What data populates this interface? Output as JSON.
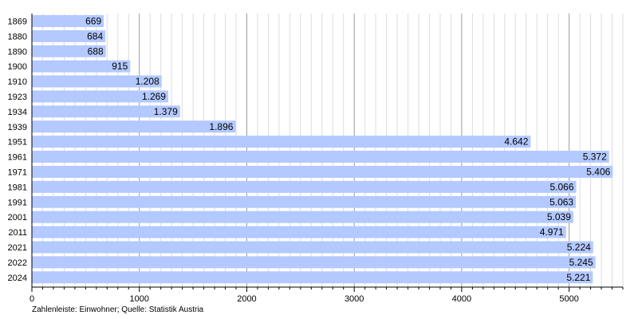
{
  "chart_data": {
    "type": "bar",
    "orientation": "horizontal",
    "categories": [
      "1869",
      "1880",
      "1890",
      "1900",
      "1910",
      "1923",
      "1934",
      "1939",
      "1951",
      "1961",
      "1971",
      "1981",
      "1991",
      "2001",
      "2011",
      "2021",
      "2022",
      "2024"
    ],
    "values": [
      669,
      684,
      688,
      915,
      1208,
      1269,
      1379,
      1896,
      4642,
      5372,
      5406,
      5066,
      5063,
      5039,
      4971,
      5224,
      5245,
      5221
    ],
    "value_labels": [
      "669",
      "684",
      "688",
      "915",
      "1.208",
      "1.269",
      "1.379",
      "1.896",
      "4.642",
      "5.372",
      "5.406",
      "5.066",
      "5.063",
      "5.039",
      "4.971",
      "5.224",
      "5.245",
      "5.221"
    ],
    "x_ticks": [
      0,
      1000,
      2000,
      3000,
      4000,
      5000
    ],
    "x_tick_labels": [
      "0",
      "1000",
      "2000",
      "3000",
      "4000",
      "5000"
    ],
    "xlim": [
      0,
      5500
    ],
    "minor_tick_step": 100,
    "grid": true,
    "bar_color": "#b3c9ff",
    "caption": "Zahlenleiste: Einwohner; Quelle: Statistik Austria"
  }
}
